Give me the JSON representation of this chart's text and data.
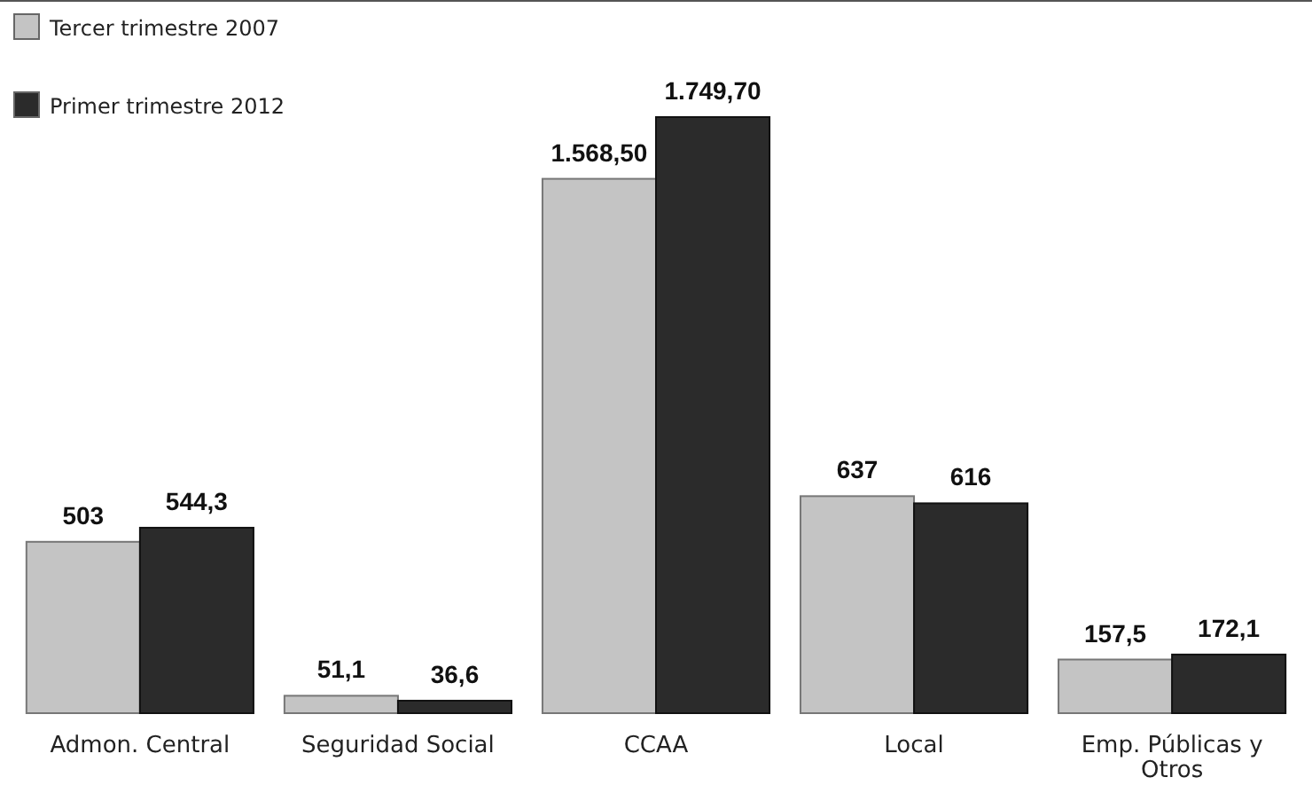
{
  "chart_data": {
    "type": "bar",
    "categories": [
      "Admon. Central",
      "Seguridad Social",
      "CCAA",
      "Local",
      "Emp. Públicas y Otros"
    ],
    "series": [
      {
        "name": "Tercer trimestre 2007",
        "color": "#c4c4c4",
        "values": [
          503,
          51.1,
          1568.5,
          637,
          157.5
        ],
        "value_labels": [
          "503",
          "51,1",
          "1.568,50",
          "637",
          "157,5"
        ]
      },
      {
        "name": "Primer trimestre 2012",
        "color": "#2b2b2b",
        "values": [
          544.3,
          36.6,
          1749.7,
          616,
          172.1
        ],
        "value_labels": [
          "544,3",
          "36,6",
          "1.749,70",
          "616",
          "172,1"
        ]
      }
    ],
    "legend": "top left",
    "grid": false
  }
}
